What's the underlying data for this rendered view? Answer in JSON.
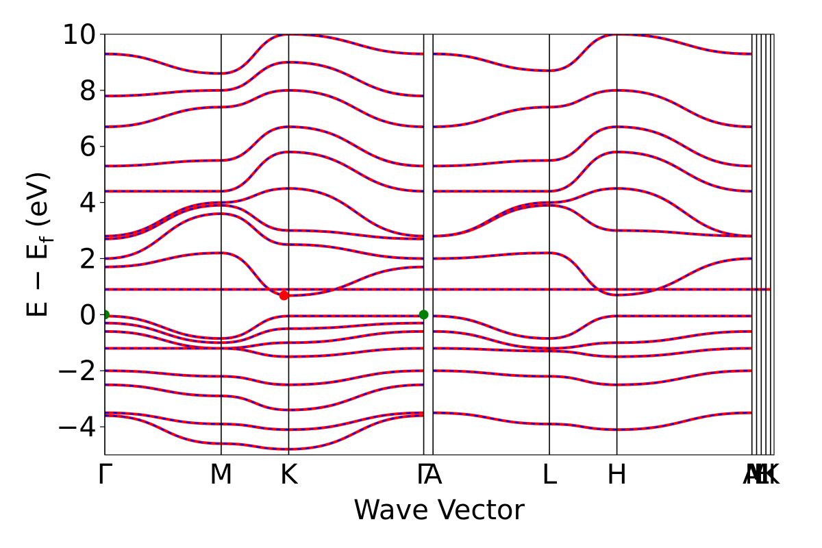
{
  "chart_data": {
    "type": "line",
    "xlabel": "Wave Vector",
    "ylabel_main": "E − E",
    "ylabel_sub": "f",
    "ylabel_unit": " (eV)",
    "ylim": [
      -5,
      10
    ],
    "yticks": [
      {
        "value": 10,
        "label": "10"
      },
      {
        "value": 8,
        "label": "8"
      },
      {
        "value": 6,
        "label": "6"
      },
      {
        "value": 4,
        "label": "4"
      },
      {
        "value": 2,
        "label": "2"
      },
      {
        "value": 0,
        "label": "0"
      },
      {
        "value": -2,
        "label": "−2"
      },
      {
        "value": -4,
        "label": "−4"
      }
    ],
    "xlim": [
      0,
      5.75
    ],
    "kpoints": [
      {
        "label": "Γ",
        "x": 0.0
      },
      {
        "label": "M",
        "x": 1.0
      },
      {
        "label": "K",
        "x": 1.58
      },
      {
        "label": "Γ",
        "x": 2.74
      },
      {
        "label": "A",
        "x": 2.82
      },
      {
        "label": "L",
        "x": 3.82
      },
      {
        "label": "H",
        "x": 4.4
      },
      {
        "label": "A",
        "x": 5.56
      },
      {
        "label": "M",
        "x": 5.6
      },
      {
        "label": "L",
        "x": 5.64
      },
      {
        "label": "H",
        "x": 5.68
      },
      {
        "label": "K",
        "x": 5.72
      }
    ],
    "series_colors": {
      "spin_up": "#ff0000",
      "spin_down": "#0000ff"
    },
    "band_extrema": [
      {
        "kind": "VBM",
        "x": 0.0,
        "y": 0.0,
        "color": "#008000"
      },
      {
        "kind": "VBM",
        "x": 2.74,
        "y": 0.0,
        "color": "#008000"
      },
      {
        "kind": "CBM",
        "x": 1.54,
        "y": 0.68,
        "color": "#ff0000"
      }
    ],
    "bands": [
      {
        "color": "#ff0000",
        "x": [
          0,
          1.0,
          1.58,
          2.74
        ],
        "y": [
          -0.05,
          -0.85,
          -0.05,
          -0.05
        ]
      },
      {
        "color": "#ff0000",
        "x": [
          0,
          1.0,
          1.58,
          2.74
        ],
        "y": [
          -0.3,
          -1.0,
          -0.5,
          -0.3
        ]
      },
      {
        "color": "#ff0000",
        "x": [
          0,
          1.0,
          1.58,
          2.74
        ],
        "y": [
          -0.6,
          -1.2,
          -1.0,
          -0.6
        ]
      },
      {
        "color": "#ff0000",
        "x": [
          0,
          1.0,
          1.58,
          2.74
        ],
        "y": [
          -1.2,
          -1.2,
          -1.5,
          -1.2
        ]
      },
      {
        "color": "#ff0000",
        "x": [
          0,
          1.0,
          1.58,
          2.74
        ],
        "y": [
          -2.0,
          -2.2,
          -2.5,
          -2.0
        ]
      },
      {
        "color": "#ff0000",
        "x": [
          0,
          1.0,
          1.58,
          2.74
        ],
        "y": [
          -2.5,
          -2.9,
          -3.4,
          -2.5
        ]
      },
      {
        "color": "#ff0000",
        "x": [
          0,
          1.0,
          1.58,
          2.74
        ],
        "y": [
          -3.5,
          -3.9,
          -4.1,
          -3.5
        ]
      },
      {
        "color": "#ff0000",
        "x": [
          0,
          1.0,
          1.58,
          2.74
        ],
        "y": [
          -3.6,
          -4.6,
          -4.8,
          -3.6
        ]
      },
      {
        "color": "#ff0000",
        "x": [
          0,
          2.74,
          5.72
        ],
        "y": [
          0.9,
          0.9,
          0.9
        ]
      },
      {
        "color": "#ff0000",
        "x": [
          0,
          1.0,
          1.58,
          2.74
        ],
        "y": [
          1.7,
          2.2,
          0.68,
          1.7
        ]
      },
      {
        "color": "#ff0000",
        "x": [
          0,
          1.0,
          1.58,
          2.74
        ],
        "y": [
          2.0,
          3.6,
          2.5,
          2.0
        ]
      },
      {
        "color": "#ff0000",
        "x": [
          0,
          1.0,
          1.58,
          2.74
        ],
        "y": [
          2.7,
          3.9,
          3.0,
          2.7
        ]
      },
      {
        "color": "#ff0000",
        "x": [
          0,
          1.0,
          1.58,
          2.74
        ],
        "y": [
          2.8,
          4.0,
          4.5,
          2.8
        ]
      },
      {
        "color": "#ff0000",
        "x": [
          0,
          1.0,
          1.58,
          2.74
        ],
        "y": [
          4.4,
          4.4,
          5.8,
          4.4
        ]
      },
      {
        "color": "#ff0000",
        "x": [
          0,
          1.0,
          1.58,
          2.74
        ],
        "y": [
          5.3,
          5.5,
          6.7,
          5.3
        ]
      },
      {
        "color": "#ff0000",
        "x": [
          0,
          1.0,
          1.58,
          2.74
        ],
        "y": [
          6.7,
          7.4,
          8.0,
          6.7
        ]
      },
      {
        "color": "#ff0000",
        "x": [
          0,
          1.0,
          1.58,
          2.74
        ],
        "y": [
          7.8,
          8.0,
          9.0,
          7.8
        ]
      },
      {
        "color": "#ff0000",
        "x": [
          0,
          1.0,
          1.58,
          2.74
        ],
        "y": [
          9.3,
          8.6,
          10.0,
          9.3
        ]
      },
      {
        "color": "#ff0000",
        "x": [
          2.82,
          3.82,
          4.4,
          5.56
        ],
        "y": [
          -0.05,
          -0.85,
          -0.05,
          -0.05
        ]
      },
      {
        "color": "#ff0000",
        "x": [
          2.82,
          3.82,
          4.4,
          5.56
        ],
        "y": [
          -0.6,
          -1.2,
          -1.0,
          -0.6
        ]
      },
      {
        "color": "#ff0000",
        "x": [
          2.82,
          3.82,
          4.4,
          5.56
        ],
        "y": [
          -1.2,
          -1.3,
          -1.5,
          -1.2
        ]
      },
      {
        "color": "#ff0000",
        "x": [
          2.82,
          3.82,
          4.4,
          5.56
        ],
        "y": [
          -2.0,
          -2.2,
          -2.5,
          -2.0
        ]
      },
      {
        "color": "#ff0000",
        "x": [
          2.82,
          3.82,
          4.4,
          5.56
        ],
        "y": [
          -3.5,
          -3.9,
          -4.1,
          -3.5
        ]
      },
      {
        "color": "#ff0000",
        "x": [
          2.82,
          3.82,
          4.4,
          5.56
        ],
        "y": [
          2.0,
          2.2,
          0.7,
          2.0
        ]
      },
      {
        "color": "#ff0000",
        "x": [
          2.82,
          3.82,
          4.4,
          5.56
        ],
        "y": [
          2.8,
          3.9,
          3.0,
          2.8
        ]
      },
      {
        "color": "#ff0000",
        "x": [
          2.82,
          3.82,
          4.4,
          5.56
        ],
        "y": [
          2.8,
          4.0,
          4.5,
          2.8
        ]
      },
      {
        "color": "#ff0000",
        "x": [
          2.82,
          3.82,
          4.4,
          5.56
        ],
        "y": [
          4.4,
          4.4,
          5.8,
          4.4
        ]
      },
      {
        "color": "#ff0000",
        "x": [
          2.82,
          3.82,
          4.4,
          5.56
        ],
        "y": [
          5.3,
          5.5,
          6.7,
          5.3
        ]
      },
      {
        "color": "#ff0000",
        "x": [
          2.82,
          3.82,
          4.4,
          5.56
        ],
        "y": [
          6.7,
          7.4,
          8.0,
          6.7
        ]
      },
      {
        "color": "#ff0000",
        "x": [
          2.82,
          3.82,
          4.4,
          5.56
        ],
        "y": [
          9.3,
          8.7,
          10.0,
          9.3
        ]
      }
    ]
  }
}
